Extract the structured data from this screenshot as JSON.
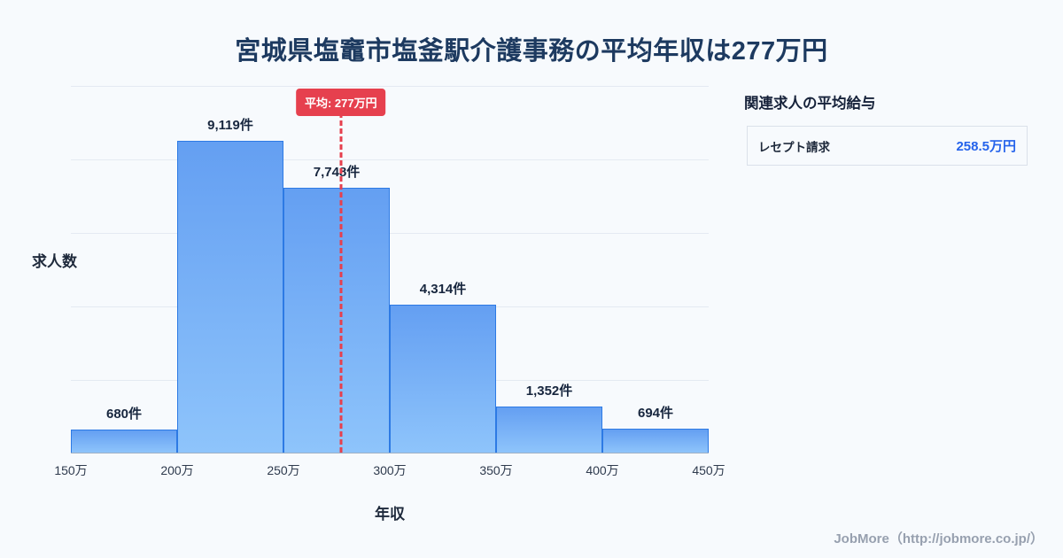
{
  "title": "宮城県塩竈市塩釜駅介護事務の平均年収は277万円",
  "chart_data": {
    "type": "bar",
    "title": "宮城県塩竈市塩釜駅介護事務の平均年収は277万円",
    "bins": [
      "150万",
      "200万",
      "250万",
      "300万",
      "350万",
      "400万",
      "450万"
    ],
    "values": [
      680,
      9119,
      7748,
      4314,
      1352,
      694
    ],
    "labels": [
      "680件",
      "9,119件",
      "7,748件",
      "4,314件",
      "1,352件",
      "694件"
    ],
    "ylabel": "求人数",
    "xlabel": "年収",
    "x_range_万円": [
      150,
      450
    ],
    "grid": true,
    "mean_line": {
      "value": 277,
      "label": "平均: 277万円",
      "x_min": 150,
      "x_max": 450,
      "color": "#e6404e"
    },
    "colors": {
      "background": "#f7fafd",
      "title_text": "#1d3a60",
      "bar_fill_top": "#649ff2",
      "bar_fill_bottom": "#8ec4fb",
      "bar_border": "#2d7ae4",
      "mean_accent": "#e6404e",
      "value_blue": "#2563eb"
    }
  },
  "side_panel": {
    "heading": "関連求人の平均給与",
    "value_color": "#2563eb",
    "rows": [
      {
        "label": "レセプト請求",
        "value": "258.5万円"
      }
    ]
  },
  "footer": {
    "credit": "JobMore（http://jobmore.co.jp/）"
  }
}
